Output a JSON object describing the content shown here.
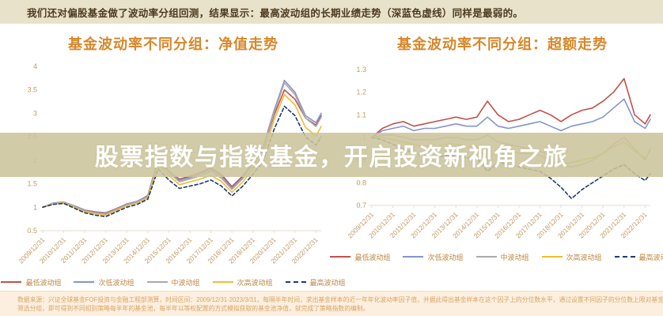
{
  "page": {
    "top_note": "我们还对偏股基金做了波动率分组回测，结果显示：最高波动组的长期业绩走势（深蓝色虚线）同样是最弱的。",
    "banner_title": "股票指数与指数基金，开启投资新视角之旅",
    "footnote_line1": "数据来源：兴证全球基金FOF投资与金融工程部测算，时间区间：2009/12/31-2023/3/31，每隔半年时间，求出基金样本的近一年年化波动率因子值，并据此得出基金样本在这个因子上的分位数水平，通过设置不同因子的分位数上限对基金样本进行",
    "footnote_line2": "筛选分组，即可得到不同组别策略每半年的基金池，每半年以等权配置的方式模拟获取的基金池净值，就完成了策略指数的编制。"
  },
  "colors": {
    "top_strip_bg": "#e9e2cb",
    "top_note_text": "#4c3b1f",
    "chart_title": "#d8872a",
    "axis_label": "#c49a62",
    "axis_line": "#e3ded2",
    "legend_text": "#bd8640",
    "banner_bg": "#cbc49e",
    "banner_text": "#ffffff",
    "footer_bg": "#fcefdf",
    "footer_text": "#d9a464"
  },
  "chart_data": [
    {
      "type": "line",
      "title": "基金波动率不同分组：净值走势",
      "xlabel": "",
      "ylabel": "",
      "grid": false,
      "legend_position": "bottom",
      "ylim": [
        0.5,
        4
      ],
      "yticks": [
        4,
        3.5,
        3,
        2.5,
        2,
        1.5,
        1,
        0.5
      ],
      "x_tick_labels": [
        "2009/12/31",
        "2010/12/31",
        "2011/12/31",
        "2012/12/31",
        "2013/12/31",
        "2014/12/31",
        "2015/12/31",
        "2016/12/31",
        "2017/12/31",
        "2018/12/31",
        "2019/12/31",
        "2020/12/31",
        "2021/12/31",
        "2022/12/31"
      ],
      "x": [
        0,
        0.5,
        1,
        1.5,
        2,
        2.5,
        3,
        3.5,
        4,
        4.5,
        5,
        5.5,
        6,
        6.5,
        7,
        7.5,
        8,
        8.5,
        9,
        9.5,
        10,
        10.5,
        11,
        11.5,
        12,
        12.5,
        13,
        13.25
      ],
      "series": [
        {
          "name": "最低波动组",
          "color": "#c2504a",
          "dash": false,
          "values": [
            1.0,
            1.08,
            1.1,
            1.03,
            0.94,
            0.9,
            0.88,
            0.97,
            1.07,
            1.12,
            1.25,
            2.0,
            1.75,
            1.6,
            1.66,
            1.74,
            1.84,
            1.7,
            1.44,
            1.66,
            1.95,
            2.25,
            2.95,
            3.5,
            3.3,
            2.9,
            2.75,
            2.95
          ]
        },
        {
          "name": "次低波动组",
          "color": "#8493cf",
          "dash": false,
          "values": [
            1.0,
            1.09,
            1.11,
            1.03,
            0.93,
            0.89,
            0.87,
            0.96,
            1.07,
            1.13,
            1.24,
            2.05,
            1.78,
            1.57,
            1.63,
            1.71,
            1.8,
            1.66,
            1.41,
            1.63,
            1.95,
            2.3,
            3.05,
            3.7,
            3.45,
            2.95,
            2.8,
            3.0
          ]
        },
        {
          "name": "中波动组",
          "color": "#a9a9a9",
          "dash": false,
          "values": [
            1.0,
            1.08,
            1.1,
            1.02,
            0.92,
            0.88,
            0.85,
            0.95,
            1.05,
            1.11,
            1.22,
            2.0,
            1.74,
            1.54,
            1.6,
            1.67,
            1.76,
            1.62,
            1.38,
            1.6,
            1.9,
            2.25,
            3.0,
            3.65,
            3.4,
            2.9,
            2.72,
            2.92
          ]
        },
        {
          "name": "次高波动组",
          "color": "#f3bb2f",
          "dash": false,
          "values": [
            1.0,
            1.07,
            1.09,
            1.0,
            0.9,
            0.86,
            0.83,
            0.93,
            1.03,
            1.09,
            1.2,
            1.92,
            1.68,
            1.48,
            1.54,
            1.6,
            1.68,
            1.55,
            1.32,
            1.53,
            1.82,
            2.12,
            2.85,
            3.4,
            3.18,
            2.7,
            2.52,
            2.72
          ]
        },
        {
          "name": "最高波动组",
          "color": "#1f3a70",
          "dash": true,
          "values": [
            1.0,
            1.06,
            1.08,
            0.98,
            0.88,
            0.83,
            0.8,
            0.9,
            1.0,
            1.06,
            1.17,
            1.82,
            1.58,
            1.4,
            1.45,
            1.5,
            1.58,
            1.45,
            1.24,
            1.44,
            1.7,
            1.98,
            2.65,
            3.15,
            2.95,
            2.5,
            2.32,
            2.5
          ]
        }
      ]
    },
    {
      "type": "line",
      "title": "基金波动率不同分组：超额走势",
      "xlabel": "",
      "ylabel": "",
      "grid": false,
      "legend_position": "bottom",
      "ylim": [
        0.7,
        1.3
      ],
      "yticks": [
        1.3,
        1.2,
        1.1,
        1,
        0.9,
        0.8,
        0.7
      ],
      "x_tick_labels": [
        "2009/12/31",
        "2010/12/31",
        "2011/12/31",
        "2012/12/31",
        "2013/12/31",
        "2014/12/31",
        "2015/12/31",
        "2016/12/31",
        "2017/12/31",
        "2018/12/31",
        "2019/12/31",
        "2020/12/31",
        "2021/12/31",
        "2022/12/31"
      ],
      "x": [
        0,
        0.5,
        1,
        1.5,
        2,
        2.5,
        3,
        3.5,
        4,
        4.5,
        5,
        5.5,
        6,
        6.5,
        7,
        7.5,
        8,
        8.5,
        9,
        9.5,
        10,
        10.5,
        11,
        11.5,
        12,
        12.5,
        13,
        13.25
      ],
      "series": [
        {
          "name": "最低波动组",
          "color": "#c2504a",
          "dash": false,
          "values": [
            1.0,
            1.04,
            1.06,
            1.07,
            1.05,
            1.06,
            1.07,
            1.08,
            1.09,
            1.08,
            1.09,
            1.16,
            1.1,
            1.07,
            1.08,
            1.1,
            1.12,
            1.1,
            1.07,
            1.1,
            1.12,
            1.13,
            1.16,
            1.2,
            1.26,
            1.1,
            1.06,
            1.1
          ]
        },
        {
          "name": "次低波动组",
          "color": "#8493cf",
          "dash": false,
          "values": [
            1.0,
            1.03,
            1.04,
            1.05,
            1.03,
            1.04,
            1.04,
            1.05,
            1.06,
            1.05,
            1.05,
            1.09,
            1.05,
            1.04,
            1.05,
            1.06,
            1.07,
            1.05,
            1.03,
            1.05,
            1.06,
            1.07,
            1.09,
            1.13,
            1.17,
            1.07,
            1.04,
            1.08
          ]
        },
        {
          "name": "中波动组",
          "color": "#a9a9a9",
          "dash": false,
          "values": [
            1.0,
            1.01,
            1.01,
            1.0,
            0.99,
            0.99,
            0.99,
            1.0,
            1.0,
            0.99,
            0.99,
            1.01,
            0.98,
            0.97,
            0.96,
            0.95,
            0.94,
            0.92,
            0.88,
            0.87,
            0.88,
            0.9,
            0.93,
            0.97,
            1.0,
            0.95,
            0.9,
            0.95
          ]
        },
        {
          "name": "次高波动组",
          "color": "#f3bb2f",
          "dash": false,
          "values": [
            1.0,
            1.0,
            0.99,
            0.98,
            0.97,
            0.96,
            0.96,
            0.97,
            0.97,
            0.96,
            0.96,
            0.9,
            0.95,
            0.94,
            0.93,
            0.93,
            0.92,
            0.9,
            0.88,
            0.89,
            0.9,
            0.91,
            0.93,
            0.96,
            0.98,
            0.94,
            0.91,
            0.94
          ]
        },
        {
          "name": "最高波动组",
          "color": "#1f3a70",
          "dash": true,
          "values": [
            1.0,
            0.99,
            0.97,
            0.95,
            0.93,
            0.92,
            0.91,
            0.92,
            0.92,
            0.91,
            0.91,
            0.85,
            0.89,
            0.88,
            0.87,
            0.86,
            0.85,
            0.82,
            0.78,
            0.73,
            0.77,
            0.8,
            0.83,
            0.86,
            0.88,
            0.84,
            0.81,
            0.84
          ]
        }
      ]
    }
  ]
}
